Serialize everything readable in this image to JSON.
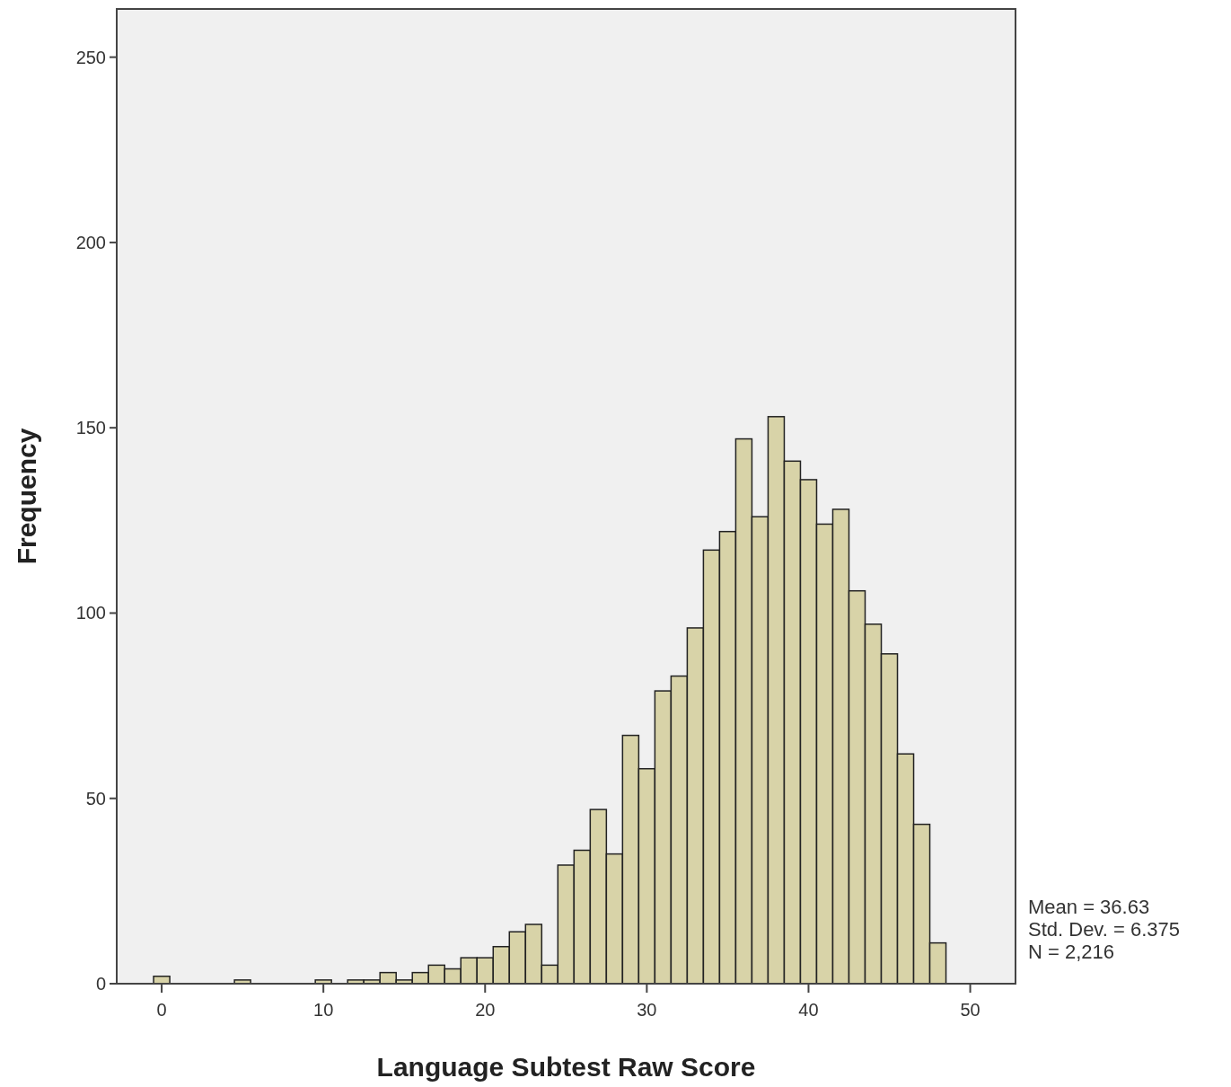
{
  "chart_data": {
    "type": "histogram",
    "xlabel": "Language Subtest Raw Score",
    "ylabel": "Frequency",
    "bins": [
      -0.5,
      0.5,
      1.5,
      2.5,
      3.5,
      4.5,
      5.5,
      6.5,
      7.5,
      8.5,
      9.5,
      10.5,
      11.5,
      12.5,
      13.5,
      14.5,
      15.5,
      16.5,
      17.5,
      18.5,
      19.5,
      20.5,
      21.5,
      22.5,
      23.5,
      24.5,
      25.5,
      26.5,
      27.5,
      28.5,
      29.5,
      30.5,
      31.5,
      32.5,
      33.5,
      34.5,
      35.5,
      36.5,
      37.5,
      38.5,
      39.5,
      40.5,
      41.5,
      42.5,
      43.5,
      44.5,
      45.5,
      46.5,
      47.5,
      48.5
    ],
    "values": [
      2,
      0,
      0,
      0,
      0,
      1,
      0,
      0,
      0,
      0,
      1,
      0,
      1,
      1,
      3,
      1,
      3,
      5,
      4,
      7,
      7,
      10,
      14,
      16,
      5,
      32,
      36,
      47,
      35,
      67,
      58,
      79,
      83,
      96,
      117,
      122,
      147,
      126,
      153,
      141,
      136,
      124,
      128,
      106,
      97,
      89,
      62,
      43,
      11
    ],
    "color": "#d8d3a8",
    "xlim": [
      -2.78,
      52.8
    ],
    "xticks": [
      0,
      10,
      20,
      30,
      40,
      50
    ],
    "ylim": [
      0,
      263
    ],
    "yticks": [
      0,
      50,
      100,
      150,
      200,
      250
    ],
    "grid": false,
    "annotations": [
      "Mean = 36.63",
      "Std. Dev. = 6.375",
      "N = 2,216"
    ]
  }
}
